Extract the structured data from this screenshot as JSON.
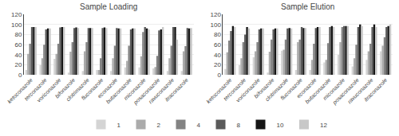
{
  "chart_data": [
    {
      "type": "bar",
      "title": "Sample Loading",
      "categories": [
        "ketoconazole",
        "terconazole",
        "voriconazole",
        "bifonazole",
        "clotrimazole",
        "fluconazole",
        "econazole",
        "butaconazole",
        "miconazole",
        "posaconazole",
        "ravuconazole",
        "itraconazole"
      ],
      "series": [
        {
          "name": "1",
          "color": "#d4d4d4",
          "values": [
            10,
            20,
            32,
            5,
            8,
            10,
            8,
            15,
            15,
            13,
            8,
            8
          ]
        },
        {
          "name": "2",
          "color": "#ababab",
          "values": [
            42,
            33,
            42,
            46,
            47,
            10,
            33,
            28,
            37,
            16,
            33,
            47
          ]
        },
        {
          "name": "4",
          "color": "#838383",
          "values": [
            62,
            60,
            62,
            65,
            65,
            33,
            58,
            58,
            85,
            38,
            58,
            57
          ]
        },
        {
          "name": "8",
          "color": "#5a5a5a",
          "values": [
            95,
            90,
            94,
            93,
            93,
            93,
            93,
            90,
            95,
            88,
            95,
            93
          ]
        },
        {
          "name": "10",
          "color": "#151515",
          "values": [
            95,
            92,
            95,
            94,
            93,
            94,
            92,
            92,
            92,
            90,
            95,
            92
          ]
        },
        {
          "name": "12",
          "color": "#c8c8c8",
          "values": [
            95,
            92,
            95,
            93,
            93,
            93,
            92,
            92,
            90,
            95,
            70,
            93
          ]
        }
      ],
      "ylim": [
        0,
        120
      ],
      "yticks": [
        0,
        20,
        40,
        60,
        80,
        100,
        120
      ],
      "grid": true,
      "legend": "bottom"
    },
    {
      "type": "bar",
      "title": "Sample Elution",
      "categories": [
        "ketoconazole",
        "terconazole",
        "voriconazole",
        "bifonazole",
        "clotrimazole",
        "fluconazole",
        "econazole",
        "butaconazole",
        "miconazole",
        "posaconazole",
        "ravuconazole",
        "itraconazole"
      ],
      "series": [
        {
          "name": "1",
          "color": "#d4d4d4",
          "values": [
            12,
            20,
            35,
            5,
            48,
            10,
            10,
            25,
            40,
            17,
            30,
            47
          ]
        },
        {
          "name": "2",
          "color": "#ababab",
          "values": [
            45,
            33,
            47,
            46,
            50,
            65,
            30,
            30,
            65,
            33,
            47,
            58
          ]
        },
        {
          "name": "4",
          "color": "#838383",
          "values": [
            68,
            65,
            65,
            70,
            70,
            70,
            62,
            63,
            95,
            60,
            62,
            75
          ]
        },
        {
          "name": "8",
          "color": "#5a5a5a",
          "values": [
            87,
            80,
            90,
            90,
            92,
            95,
            93,
            95,
            97,
            95,
            95,
            95
          ]
        },
        {
          "name": "10",
          "color": "#151515",
          "values": [
            97,
            95,
            92,
            92,
            93,
            93,
            95,
            97,
            97,
            100,
            100,
            97
          ]
        },
        {
          "name": "12",
          "color": "#c8c8c8",
          "values": [
            95,
            92,
            92,
            92,
            92,
            93,
            95,
            95,
            97,
            97,
            95,
            100
          ]
        }
      ],
      "ylim": [
        0,
        120
      ],
      "yticks": [
        0,
        20,
        40,
        60,
        80,
        100,
        120
      ],
      "grid": true,
      "legend": "bottom"
    }
  ]
}
